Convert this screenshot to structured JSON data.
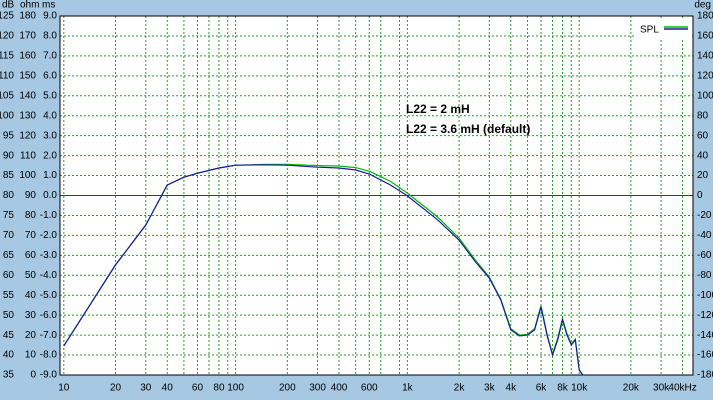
{
  "chart_data": {
    "type": "line",
    "xscale": "log",
    "xlim": [
      9.5,
      46000
    ],
    "xticks": [
      10,
      20,
      30,
      40,
      60,
      80,
      100,
      200,
      300,
      400,
      600,
      {
        "value": 1000,
        "label": "1k"
      },
      {
        "value": 2000,
        "label": "2k"
      },
      {
        "value": 3000,
        "label": "3k"
      },
      {
        "value": 4000,
        "label": "4k"
      },
      {
        "value": 6000,
        "label": "6k"
      },
      {
        "value": 8000,
        "label": "8k"
      },
      {
        "value": 10000,
        "label": "10k"
      },
      {
        "value": 20000,
        "label": "20k"
      },
      {
        "value": 30000,
        "label": "30k"
      },
      {
        "value": 40000,
        "label": "40kHz"
      }
    ],
    "xgrid": [
      50,
      70,
      90,
      500,
      700,
      900,
      5000,
      7000,
      9000
    ],
    "y_axes": [
      {
        "unit": "dB",
        "lim": [
          35,
          125
        ],
        "ticks": [
          125,
          120,
          115,
          110,
          105,
          100,
          95,
          90,
          85,
          80,
          75,
          70,
          65,
          60,
          55,
          50,
          45,
          40,
          35
        ]
      },
      {
        "unit": "ohm",
        "lim": [
          0,
          180
        ],
        "ticks": [
          180,
          170,
          160,
          150,
          140,
          130,
          120,
          110,
          100,
          90,
          80,
          70,
          60,
          50,
          40,
          30,
          20,
          10,
          0
        ]
      },
      {
        "unit": "ms",
        "lim": [
          -9,
          9
        ],
        "ticks": [
          {
            "value": 9,
            "label": "9.0"
          },
          {
            "value": 8,
            "label": "8.0"
          },
          {
            "value": 7,
            "label": "7.0"
          },
          {
            "value": 6,
            "label": "6.0"
          },
          {
            "value": 5,
            "label": "5.0"
          },
          {
            "value": 4,
            "label": "4.0"
          },
          {
            "value": 3,
            "label": "3.0"
          },
          {
            "value": 2,
            "label": "2.0"
          },
          {
            "value": 1,
            "label": "1.0"
          },
          {
            "value": 0,
            "label": "0.0"
          },
          {
            "value": -1,
            "label": "-1.0"
          },
          {
            "value": -2,
            "label": "-2.0"
          },
          {
            "value": -3,
            "label": "-3.0"
          },
          {
            "value": -4,
            "label": "-4.0"
          },
          {
            "value": -5,
            "label": "-5.0"
          },
          {
            "value": -6,
            "label": "-6.0"
          },
          {
            "value": -7,
            "label": "-7.0"
          },
          {
            "value": -8,
            "label": "-8.0"
          },
          {
            "value": -9,
            "label": "-9.0"
          }
        ]
      },
      {
        "unit": "deg",
        "lim": [
          -180,
          180
        ],
        "ticks": [
          180,
          160,
          140,
          120,
          100,
          80,
          60,
          40,
          20,
          0,
          -20,
          -40,
          -60,
          -80,
          -100,
          -120,
          -140,
          -160,
          -180
        ]
      }
    ],
    "grid": true,
    "ref_line": {
      "value": 80,
      "color": "#cc0000"
    },
    "legend": "SPL",
    "x": [
      10,
      20,
      30,
      40,
      50,
      60,
      80,
      100,
      150,
      200,
      300,
      400,
      500,
      600,
      800,
      1000,
      1500,
      2000,
      2500,
      3000,
      3500,
      4000,
      4500,
      5000,
      5500,
      6000,
      6500,
      7000,
      7500,
      8000,
      8500,
      9000,
      9500,
      10000,
      10500
    ],
    "series": [
      {
        "color": "#00bb00",
        "values": [
          42.3,
          62.6,
          72.6,
          82.6,
          84.6,
          85.6,
          86.9,
          87.6,
          87.8,
          87.8,
          87.5,
          87.4,
          87.0,
          86.1,
          83.5,
          80.6,
          74.6,
          69.3,
          63.7,
          59.6,
          54.0,
          46.6,
          45.0,
          45.2,
          46.6,
          52.4,
          45.3,
          40.3,
          44.2,
          49.2,
          45.3,
          42.8,
          44.0,
          36.4,
          35
        ]
      },
      {
        "color": "#1a1aa0",
        "values": [
          42.3,
          62.6,
          72.6,
          82.6,
          84.6,
          85.6,
          86.9,
          87.6,
          87.7,
          87.6,
          87.1,
          86.9,
          86.4,
          85.4,
          82.6,
          79.9,
          73.9,
          68.8,
          63.3,
          59.3,
          53.8,
          46.3,
          44.8,
          45.0,
          46.3,
          52.0,
          45.0,
          40.0,
          43.8,
          48.8,
          45.0,
          42.5,
          43.8,
          36.2,
          35
        ]
      }
    ],
    "annotations": [
      {
        "text": "L22 = 2 mH",
        "color": "#22cc22"
      },
      {
        "text": "L22 = 3.6 mH (default)",
        "color": "#101090"
      }
    ]
  }
}
